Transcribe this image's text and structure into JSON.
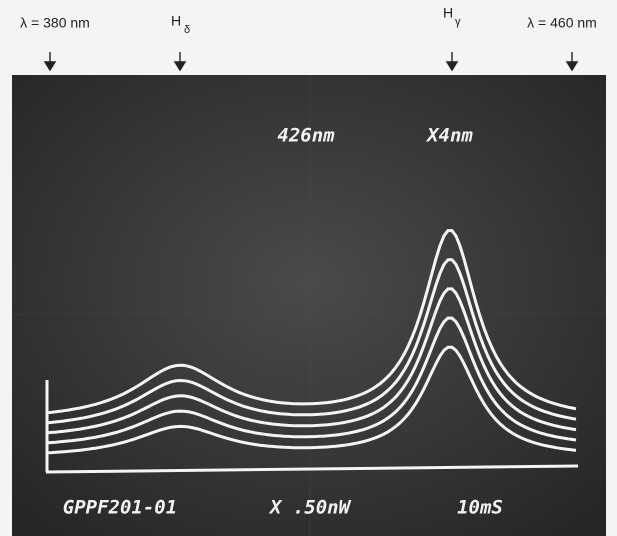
{
  "annotations": [
    {
      "text": "λ = 380 nm"
    },
    {
      "text": "H",
      "sub": "δ"
    },
    {
      "text": "H",
      "sub": "γ"
    },
    {
      "text": "λ = 460 nm"
    }
  ],
  "screen": {
    "center": "426nm",
    "span": "X4nm",
    "id": "GPPF201-01",
    "scale": "X .50nW",
    "time": "10mS"
  }
}
